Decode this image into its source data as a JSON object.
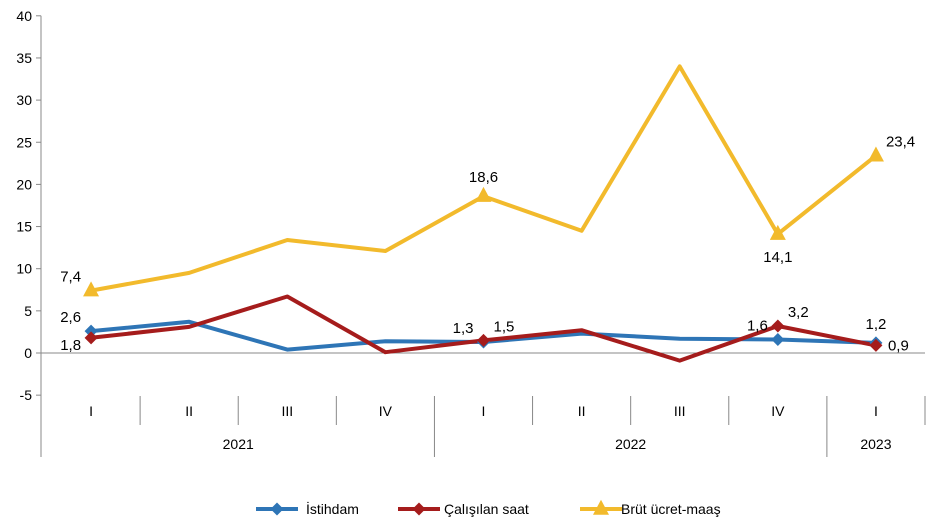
{
  "chart_data": {
    "type": "line",
    "title": "",
    "xlabel": "",
    "ylabel": "",
    "ylim": [
      -5,
      40
    ],
    "yticks": [
      -5,
      0,
      5,
      10,
      15,
      20,
      25,
      30,
      35,
      40
    ],
    "ytick_labels": [
      "-5",
      "0",
      "5",
      "10",
      "15",
      "20",
      "25",
      "30",
      "35",
      "40"
    ],
    "grid": false,
    "legend_position": "bottom-center",
    "categories": [
      "I",
      "II",
      "III",
      "IV",
      "I",
      "II",
      "III",
      "IV",
      "I"
    ],
    "year_groups": [
      {
        "label": "2021",
        "count": 4
      },
      {
        "label": "2022",
        "count": 4
      },
      {
        "label": "2023",
        "count": 1
      }
    ],
    "series": [
      {
        "name": "İstihdam",
        "color": "#2E75B6",
        "marker": "diamond",
        "values": [
          2.6,
          3.7,
          0.4,
          1.4,
          1.3,
          2.3,
          1.7,
          1.6,
          1.2
        ]
      },
      {
        "name": "Çalışılan saat",
        "color": "#A51C1C",
        "marker": "diamond",
        "values": [
          1.8,
          3.1,
          6.7,
          0.1,
          1.5,
          2.7,
          -0.9,
          3.2,
          0.9
        ]
      },
      {
        "name": "Brüt ücret-maaş",
        "color": "#F2BA2C",
        "marker": "triangle",
        "values": [
          7.4,
          9.5,
          13.4,
          12.1,
          18.6,
          14.5,
          34.0,
          14.1,
          23.4
        ]
      }
    ],
    "data_labels": [
      {
        "series": 0,
        "index": 0,
        "text": "2,6",
        "anchor": "upper-left"
      },
      {
        "series": 1,
        "index": 0,
        "text": "1,8",
        "anchor": "lower-left"
      },
      {
        "series": 2,
        "index": 0,
        "text": "7,4",
        "anchor": "upper-left"
      },
      {
        "series": 0,
        "index": 4,
        "text": "1,3",
        "anchor": "upper-left"
      },
      {
        "series": 1,
        "index": 4,
        "text": "1,5",
        "anchor": "upper-right"
      },
      {
        "series": 2,
        "index": 4,
        "text": "18,6",
        "anchor": "above"
      },
      {
        "series": 0,
        "index": 7,
        "text": "1,6",
        "anchor": "upper-left"
      },
      {
        "series": 1,
        "index": 7,
        "text": "3,2",
        "anchor": "upper-right"
      },
      {
        "series": 2,
        "index": 7,
        "text": "14,1",
        "anchor": "below"
      },
      {
        "series": 0,
        "index": 8,
        "text": "1,2",
        "anchor": "above"
      },
      {
        "series": 1,
        "index": 8,
        "text": "0,9",
        "anchor": "right"
      },
      {
        "series": 2,
        "index": 8,
        "text": "23,4",
        "anchor": "upper-right"
      }
    ]
  }
}
